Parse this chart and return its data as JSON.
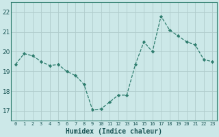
{
  "x": [
    0,
    1,
    2,
    3,
    4,
    5,
    6,
    7,
    8,
    9,
    10,
    11,
    12,
    13,
    14,
    15,
    16,
    17,
    18,
    19,
    20,
    21,
    22,
    23
  ],
  "y": [
    19.35,
    19.9,
    19.8,
    19.5,
    19.3,
    19.35,
    19.0,
    18.8,
    18.35,
    17.05,
    17.1,
    17.45,
    17.8,
    17.8,
    19.35,
    20.5,
    20.0,
    21.8,
    21.1,
    20.8,
    20.5,
    20.35,
    19.6,
    19.5
  ],
  "line_color": "#2e7d6e",
  "bg_color": "#cce8e8",
  "grid_color": "#b0cccc",
  "xlabel": "Humidex (Indice chaleur)",
  "ylim": [
    16.5,
    22.5
  ],
  "xlim": [
    -0.5,
    23.5
  ],
  "yticks": [
    17,
    18,
    19,
    20,
    21,
    22
  ],
  "xticks": [
    0,
    1,
    2,
    3,
    4,
    5,
    6,
    7,
    8,
    9,
    10,
    11,
    12,
    13,
    14,
    15,
    16,
    17,
    18,
    19,
    20,
    21,
    22,
    23
  ],
  "xtick_labels": [
    "0",
    "1",
    "2",
    "3",
    "4",
    "5",
    "6",
    "7",
    "8",
    "9",
    "10",
    "11",
    "12",
    "13",
    "14",
    "15",
    "16",
    "17",
    "18",
    "19",
    "20",
    "21",
    "22",
    "23"
  ]
}
